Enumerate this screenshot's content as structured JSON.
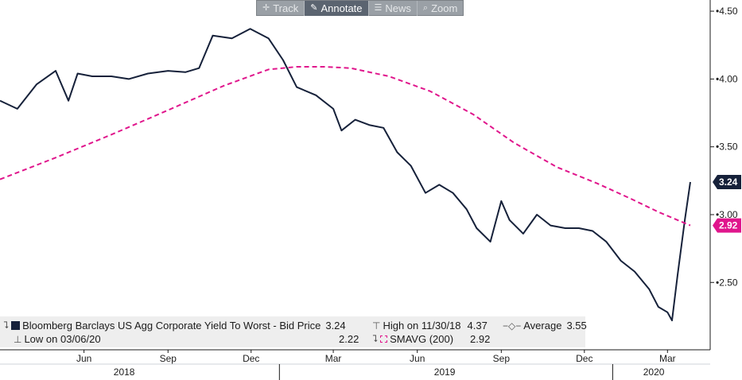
{
  "toolbar": {
    "buttons": [
      {
        "label": "Track",
        "icon": "crosshair-icon",
        "glyph": "✛",
        "active": false
      },
      {
        "label": "Annotate",
        "icon": "pencil-icon",
        "glyph": "✎",
        "active": true
      },
      {
        "label": "News",
        "icon": "news-icon",
        "glyph": "☰",
        "active": false
      },
      {
        "label": "Zoom",
        "icon": "zoom-icon",
        "glyph": "⌕",
        "active": false
      }
    ]
  },
  "chart_data": {
    "type": "line",
    "x_months": [
      "Jun",
      "Sep",
      "Dec",
      "Mar",
      "Jun",
      "Sep",
      "Dec",
      "Mar"
    ],
    "x_years": [
      "2018",
      "2019",
      "2020"
    ],
    "ylim": [
      2.15,
      4.6
    ],
    "yticks": [
      "4.50",
      "4.00",
      "3.50",
      "3.00",
      "2.50"
    ],
    "grid": false,
    "series": [
      {
        "name": "Bloomberg Barclays US Agg Corporate Yield To Worst - Bid Price",
        "color": "#16213a",
        "style": "solid",
        "last_value": "3.24",
        "x": [
          "2018-03-01",
          "2018-03-20",
          "2018-04-10",
          "2018-05-01",
          "2018-05-15",
          "2018-05-25",
          "2018-06-10",
          "2018-07-01",
          "2018-07-20",
          "2018-08-10",
          "2018-09-01",
          "2018-09-20",
          "2018-10-05",
          "2018-10-20",
          "2018-11-10",
          "2018-11-30",
          "2018-12-20",
          "2019-01-05",
          "2019-01-20",
          "2019-02-10",
          "2019-03-01",
          "2019-03-10",
          "2019-03-25",
          "2019-04-10",
          "2019-04-25",
          "2019-05-10",
          "2019-05-25",
          "2019-06-10",
          "2019-06-25",
          "2019-07-10",
          "2019-07-25",
          "2019-08-05",
          "2019-08-20",
          "2019-09-01",
          "2019-09-10",
          "2019-09-25",
          "2019-10-10",
          "2019-10-25",
          "2019-11-10",
          "2019-11-25",
          "2019-12-10",
          "2019-12-25",
          "2020-01-10",
          "2020-01-25",
          "2020-02-10",
          "2020-02-20",
          "2020-03-01",
          "2020-03-06",
          "2020-03-12",
          "2020-03-20",
          "2020-03-26"
        ],
        "y": [
          3.84,
          3.78,
          3.96,
          4.06,
          3.84,
          4.04,
          4.02,
          4.02,
          4.0,
          4.04,
          4.06,
          4.05,
          4.08,
          4.32,
          4.3,
          4.37,
          4.3,
          4.14,
          3.94,
          3.88,
          3.78,
          3.62,
          3.7,
          3.66,
          3.64,
          3.46,
          3.36,
          3.16,
          3.22,
          3.16,
          3.04,
          2.9,
          2.8,
          3.1,
          2.96,
          2.86,
          3.0,
          2.92,
          2.9,
          2.9,
          2.88,
          2.8,
          2.66,
          2.58,
          2.45,
          2.32,
          2.28,
          2.22,
          2.55,
          2.96,
          3.24
        ]
      },
      {
        "name": "SMAVG (200)",
        "color": "#e0168c",
        "style": "dashed",
        "last_value": "2.92",
        "x": [
          "2018-03-01",
          "2018-05-01",
          "2018-07-01",
          "2018-09-01",
          "2018-11-01",
          "2018-12-20",
          "2019-01-20",
          "2019-02-20",
          "2019-03-20",
          "2019-05-01",
          "2019-06-15",
          "2019-08-01",
          "2019-09-15",
          "2019-11-01",
          "2019-12-15",
          "2020-01-20",
          "2020-02-20",
          "2020-03-26"
        ],
        "y": [
          3.26,
          3.42,
          3.59,
          3.77,
          3.95,
          4.07,
          4.09,
          4.09,
          4.08,
          4.02,
          3.91,
          3.74,
          3.53,
          3.35,
          3.23,
          3.12,
          3.02,
          2.92
        ]
      }
    ]
  },
  "legend": {
    "main_name": "Bloomberg Barclays US Agg Corporate Yield To Worst - Bid Price",
    "main_value": "3.24",
    "high_label": "High on 11/30/18",
    "high_value": "4.37",
    "average_label": "Average",
    "average_value": "3.55",
    "low_label": "Low on 03/06/20",
    "low_value": "2.22",
    "sma_label": "SMAVG (200)",
    "sma_value": "2.92"
  }
}
